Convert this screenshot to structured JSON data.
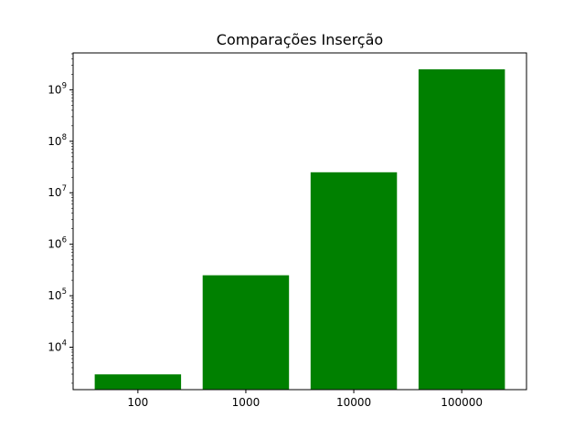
{
  "chart_data": {
    "type": "bar",
    "title": "Comparações Inserção",
    "xlabel": "",
    "ylabel": "",
    "categories": [
      "100",
      "1000",
      "10000",
      "100000"
    ],
    "values": [
      2970,
      249750,
      24997500,
      2499975000
    ],
    "yscale": "log",
    "ylim": [
      1500,
      5200000000
    ],
    "yticks": [
      {
        "base": "10",
        "exp": "4",
        "value": 10000
      },
      {
        "base": "10",
        "exp": "5",
        "value": 100000
      },
      {
        "base": "10",
        "exp": "6",
        "value": 1000000
      },
      {
        "base": "10",
        "exp": "7",
        "value": 10000000
      },
      {
        "base": "10",
        "exp": "8",
        "value": 100000000
      },
      {
        "base": "10",
        "exp": "9",
        "value": 1000000000
      }
    ],
    "bar_color": "#008000",
    "grid": false,
    "legend": "none"
  }
}
